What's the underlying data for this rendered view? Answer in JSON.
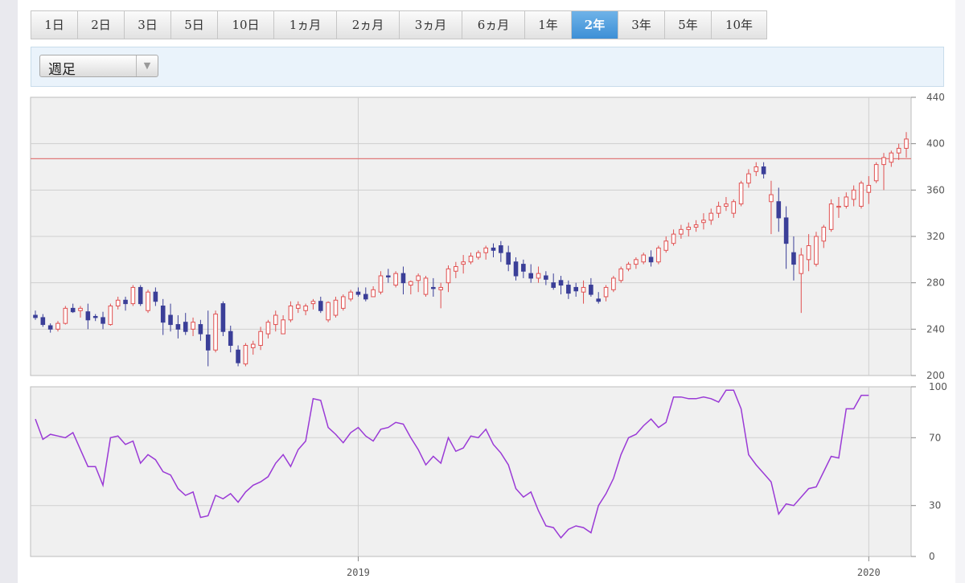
{
  "period_tabs": [
    {
      "label": "1日",
      "width": 58
    },
    {
      "label": "2日",
      "width": 58
    },
    {
      "label": "3日",
      "width": 58
    },
    {
      "label": "5日",
      "width": 58
    },
    {
      "label": "10日",
      "width": 70
    },
    {
      "label": "1ヵ月",
      "width": 78
    },
    {
      "label": "2ヵ月",
      "width": 78
    },
    {
      "label": "3ヵ月",
      "width": 78
    },
    {
      "label": "6ヵ月",
      "width": 78
    },
    {
      "label": "1年",
      "width": 58
    },
    {
      "label": "2年",
      "width": 58
    },
    {
      "label": "3年",
      "width": 58
    },
    {
      "label": "5年",
      "width": 58
    },
    {
      "label": "10年",
      "width": 68
    }
  ],
  "active_tab": "2年",
  "interval_select": {
    "value": "週足"
  },
  "colors": {
    "up": "#e05050",
    "down": "#3b3f98",
    "rsi": "#9a3ad6",
    "ref_line": "#e07a7a",
    "grid": "#cfcfcf",
    "panel": "#f0f0f0"
  },
  "chart_data": [
    {
      "type": "candlestick",
      "title": "",
      "y_ticks": [
        440,
        400,
        360,
        320,
        280,
        240,
        200
      ],
      "ylim": [
        200,
        440
      ],
      "x_ticks": [
        {
          "label": "2019",
          "index": 43
        },
        {
          "label": "2020",
          "index": 111
        }
      ],
      "reference_line": 387,
      "grid": true,
      "ohlc": [
        [
          252,
          256,
          248,
          250
        ],
        [
          250,
          253,
          242,
          244
        ],
        [
          243,
          245,
          237,
          240
        ],
        [
          240,
          247,
          238,
          245
        ],
        [
          245,
          260,
          244,
          258
        ],
        [
          258,
          262,
          254,
          255
        ],
        [
          256,
          260,
          250,
          258
        ],
        [
          255,
          262,
          240,
          248
        ],
        [
          251,
          253,
          247,
          250
        ],
        [
          250,
          255,
          240,
          245
        ],
        [
          244,
          262,
          243,
          260
        ],
        [
          260,
          268,
          257,
          265
        ],
        [
          265,
          268,
          256,
          262
        ],
        [
          262,
          278,
          260,
          276
        ],
        [
          276,
          278,
          260,
          262
        ],
        [
          256,
          274,
          254,
          272
        ],
        [
          272,
          276,
          260,
          264
        ],
        [
          260,
          266,
          235,
          246
        ],
        [
          252,
          262,
          238,
          244
        ],
        [
          244,
          252,
          232,
          240
        ],
        [
          246,
          254,
          235,
          238
        ],
        [
          240,
          250,
          234,
          246
        ],
        [
          244,
          248,
          230,
          236
        ],
        [
          235,
          256,
          208,
          222
        ],
        [
          222,
          256,
          220,
          253
        ],
        [
          262,
          264,
          234,
          238
        ],
        [
          238,
          243,
          220,
          226
        ],
        [
          222,
          226,
          208,
          211
        ],
        [
          210,
          228,
          208,
          226
        ],
        [
          224,
          230,
          218,
          227
        ],
        [
          226,
          242,
          222,
          238
        ],
        [
          236,
          248,
          232,
          246
        ],
        [
          244,
          256,
          238,
          252
        ],
        [
          236,
          252,
          236,
          248
        ],
        [
          248,
          264,
          246,
          260
        ],
        [
          258,
          264,
          254,
          261
        ],
        [
          256,
          262,
          252,
          260
        ],
        [
          262,
          266,
          257,
          264
        ],
        [
          264,
          268,
          254,
          256
        ],
        [
          248,
          264,
          246,
          263
        ],
        [
          252,
          268,
          250,
          265
        ],
        [
          258,
          270,
          256,
          268
        ],
        [
          266,
          274,
          264,
          272
        ],
        [
          272,
          276,
          268,
          270
        ],
        [
          270,
          276,
          264,
          266
        ],
        [
          268,
          277,
          268,
          274
        ],
        [
          272,
          290,
          270,
          286
        ],
        [
          286,
          292,
          280,
          285
        ],
        [
          278,
          290,
          276,
          288
        ],
        [
          288,
          294,
          270,
          280
        ],
        [
          278,
          282,
          270,
          281
        ],
        [
          282,
          288,
          272,
          286
        ],
        [
          270,
          286,
          268,
          284
        ],
        [
          276,
          284,
          268,
          275
        ],
        [
          274,
          280,
          258,
          276
        ],
        [
          280,
          295,
          272,
          292
        ],
        [
          290,
          298,
          284,
          294
        ],
        [
          296,
          304,
          288,
          298
        ],
        [
          298,
          306,
          296,
          303
        ],
        [
          302,
          308,
          300,
          306
        ],
        [
          306,
          312,
          300,
          310
        ],
        [
          310,
          314,
          302,
          308
        ],
        [
          312,
          316,
          298,
          306
        ],
        [
          306,
          312,
          290,
          296
        ],
        [
          298,
          302,
          282,
          286
        ],
        [
          296,
          300,
          284,
          290
        ],
        [
          288,
          296,
          280,
          284
        ],
        [
          284,
          294,
          280,
          288
        ],
        [
          286,
          290,
          278,
          283
        ],
        [
          280,
          288,
          274,
          276
        ],
        [
          282,
          286,
          270,
          278
        ],
        [
          278,
          282,
          266,
          271
        ],
        [
          276,
          280,
          268,
          273
        ],
        [
          272,
          282,
          262,
          276
        ],
        [
          278,
          284,
          268,
          270
        ],
        [
          266,
          272,
          262,
          264
        ],
        [
          268,
          278,
          264,
          276
        ],
        [
          274,
          286,
          272,
          284
        ],
        [
          282,
          294,
          280,
          292
        ],
        [
          292,
          298,
          290,
          296
        ],
        [
          296,
          302,
          292,
          300
        ],
        [
          298,
          306,
          296,
          304
        ],
        [
          302,
          308,
          294,
          298
        ],
        [
          298,
          312,
          296,
          310
        ],
        [
          308,
          320,
          306,
          316
        ],
        [
          314,
          326,
          312,
          322
        ],
        [
          322,
          330,
          318,
          326
        ],
        [
          326,
          332,
          320,
          328
        ],
        [
          328,
          334,
          324,
          330
        ],
        [
          332,
          340,
          326,
          334
        ],
        [
          334,
          344,
          330,
          340
        ],
        [
          340,
          350,
          336,
          346
        ],
        [
          346,
          354,
          342,
          348
        ],
        [
          340,
          352,
          336,
          350
        ],
        [
          348,
          368,
          346,
          366
        ],
        [
          366,
          378,
          362,
          374
        ],
        [
          376,
          384,
          372,
          380
        ],
        [
          380,
          384,
          370,
          374
        ],
        [
          350,
          368,
          322,
          356
        ],
        [
          350,
          362,
          324,
          336
        ],
        [
          336,
          346,
          292,
          314
        ],
        [
          306,
          320,
          282,
          296
        ],
        [
          288,
          310,
          254,
          304
        ],
        [
          300,
          322,
          290,
          312
        ],
        [
          296,
          324,
          294,
          320
        ],
        [
          316,
          330,
          310,
          328
        ],
        [
          326,
          352,
          324,
          348
        ],
        [
          346,
          354,
          336,
          346
        ],
        [
          346,
          358,
          344,
          354
        ],
        [
          352,
          364,
          346,
          360
        ],
        [
          346,
          368,
          344,
          366
        ],
        [
          358,
          372,
          348,
          364
        ],
        [
          368,
          384,
          366,
          382
        ],
        [
          382,
          392,
          360,
          388
        ],
        [
          384,
          394,
          380,
          392
        ],
        [
          392,
          400,
          386,
          396
        ],
        [
          396,
          410,
          388,
          404
        ]
      ]
    },
    {
      "type": "line",
      "title": "",
      "y_ticks": [
        100,
        70,
        30,
        0
      ],
      "ylim": [
        0,
        100
      ],
      "grid": true,
      "values": [
        81,
        69,
        72,
        71,
        70,
        73,
        63,
        53,
        53,
        42,
        70,
        71,
        66,
        68,
        55,
        60,
        57,
        50,
        48,
        40,
        36,
        38,
        23,
        24,
        36,
        34,
        37,
        32,
        38,
        42,
        44,
        47,
        55,
        60,
        53,
        63,
        68,
        93,
        92,
        76,
        72,
        67,
        73,
        76,
        71,
        68,
        75,
        76,
        79,
        78,
        70,
        63,
        54,
        59,
        55,
        70,
        62,
        64,
        71,
        70,
        75,
        66,
        61,
        54,
        40,
        35,
        38,
        27,
        18,
        17,
        11,
        16,
        18,
        17,
        14,
        30,
        37,
        46,
        60,
        70,
        72,
        77,
        81,
        76,
        79,
        94,
        94,
        93,
        93,
        94,
        93,
        91,
        98,
        98,
        87,
        60,
        54,
        49,
        44,
        25,
        31,
        30,
        35,
        40,
        41,
        50,
        59,
        58,
        87,
        87,
        95,
        95
      ]
    }
  ]
}
